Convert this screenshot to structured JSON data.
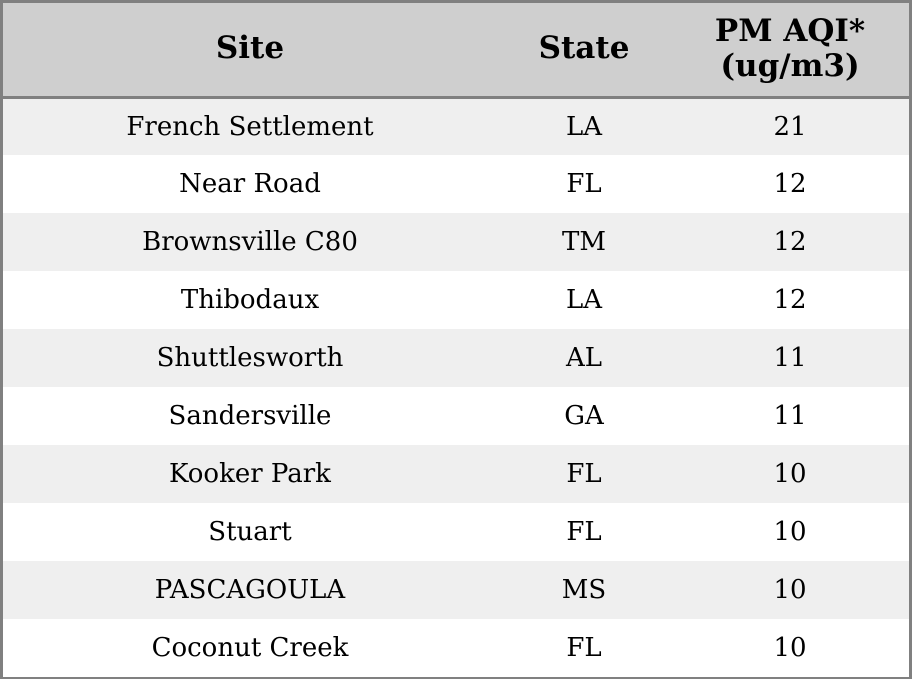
{
  "chart_data": {
    "type": "table",
    "columns": [
      "Site",
      "State",
      "PM AQI*",
      "(ug/m3)"
    ],
    "rows": [
      {
        "site": "French Settlement",
        "state": "LA",
        "value": "21"
      },
      {
        "site": "Near Road",
        "state": "FL",
        "value": "12"
      },
      {
        "site": "Brownsville C80",
        "state": "TM",
        "value": "12"
      },
      {
        "site": "Thibodaux",
        "state": "LA",
        "value": "12"
      },
      {
        "site": "Shuttlesworth",
        "state": "AL",
        "value": "11"
      },
      {
        "site": "Sandersville",
        "state": "GA",
        "value": "11"
      },
      {
        "site": "Kooker Park",
        "state": "FL",
        "value": "10"
      },
      {
        "site": "Stuart",
        "state": "FL",
        "value": "10"
      },
      {
        "site": "PASCAGOULA",
        "state": "MS",
        "value": "10"
      },
      {
        "site": "Coconut Creek",
        "state": "FL",
        "value": "10"
      }
    ]
  },
  "colors": {
    "header_bg": "#cfcfcf",
    "row_alt_bg": "#efefef",
    "row_bg": "#ffffff",
    "border": "#808080"
  }
}
